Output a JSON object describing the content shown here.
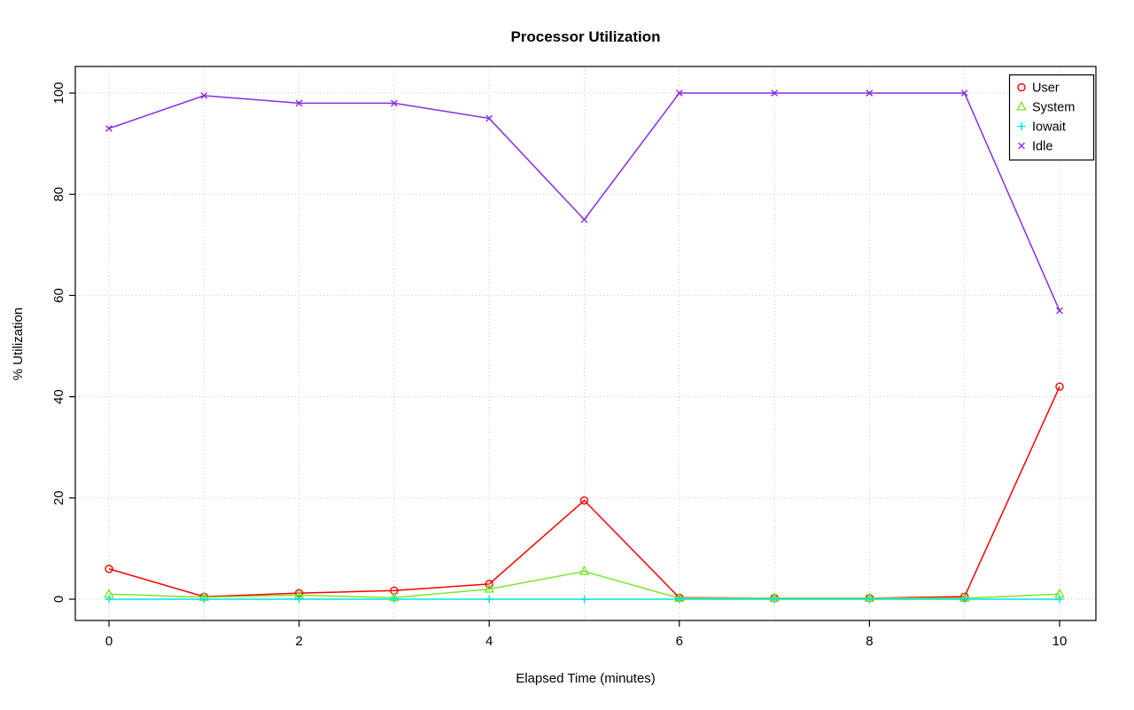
{
  "chart_data": {
    "type": "line",
    "title": "Processor Utilization",
    "xlabel": "Elapsed Time (minutes)",
    "ylabel": "% Utilization",
    "x": [
      0,
      1,
      2,
      3,
      4,
      5,
      6,
      7,
      8,
      9,
      10
    ],
    "xlim": [
      0,
      10
    ],
    "ylim": [
      0,
      100
    ],
    "xticks": [
      0,
      2,
      4,
      6,
      8,
      10
    ],
    "yticks": [
      0,
      20,
      40,
      60,
      80,
      100
    ],
    "grid": "dotted",
    "legend_position": "top-right",
    "series": [
      {
        "name": "User",
        "marker": "circle",
        "color": "#ff0000",
        "values": [
          6,
          0.5,
          1.2,
          1.7,
          3,
          19.5,
          0.3,
          0.2,
          0.2,
          0.5,
          42
        ]
      },
      {
        "name": "System",
        "marker": "triangle",
        "color": "#7ce62e",
        "values": [
          1,
          0.4,
          0.8,
          0.3,
          2,
          5.5,
          0.2,
          0.2,
          0.2,
          0.2,
          1
        ]
      },
      {
        "name": "Iowait",
        "marker": "plus",
        "color": "#00e0e6",
        "values": [
          0,
          0,
          0,
          0,
          0,
          0,
          0,
          0,
          0,
          0,
          0
        ]
      },
      {
        "name": "Idle",
        "marker": "x",
        "color": "#8a2be2",
        "values": [
          93,
          99.5,
          98,
          98,
          95,
          75,
          100,
          100,
          100,
          100,
          57
        ]
      }
    ]
  }
}
